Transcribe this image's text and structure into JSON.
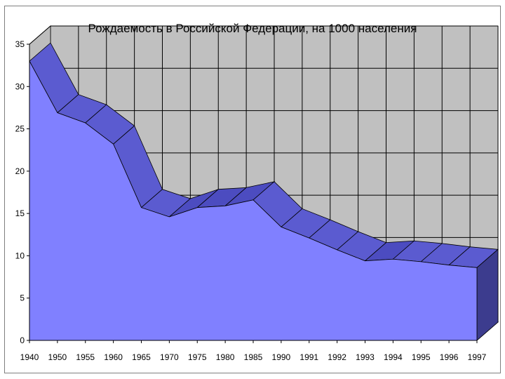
{
  "chart_data": {
    "type": "area",
    "title": "Рождаемость в Российской Федерации, на 1000 населения",
    "xlabel": "",
    "ylabel": "",
    "categories": [
      "1940",
      "1950",
      "1955",
      "1960",
      "1965",
      "1970",
      "1975",
      "1980",
      "1985",
      "1990",
      "1991",
      "1992",
      "1993",
      "1994",
      "1995",
      "1996",
      "1997"
    ],
    "series": [
      {
        "values": [
          33.0,
          26.9,
          25.7,
          23.2,
          15.7,
          14.6,
          15.7,
          15.9,
          16.6,
          13.4,
          12.1,
          10.7,
          9.4,
          9.6,
          9.3,
          8.9,
          8.6
        ]
      }
    ],
    "ylim": [
      0,
      35
    ],
    "yticks": [
      0,
      5,
      10,
      15,
      20,
      25,
      30,
      35
    ],
    "grid": true,
    "style": "3d",
    "colors": {
      "front": "#8080ff",
      "top": "#5b5bd0",
      "side": "#3c3c8e",
      "wall": "#c0c0c0",
      "floor": "#a6a6a6",
      "grid": "#000000"
    }
  }
}
